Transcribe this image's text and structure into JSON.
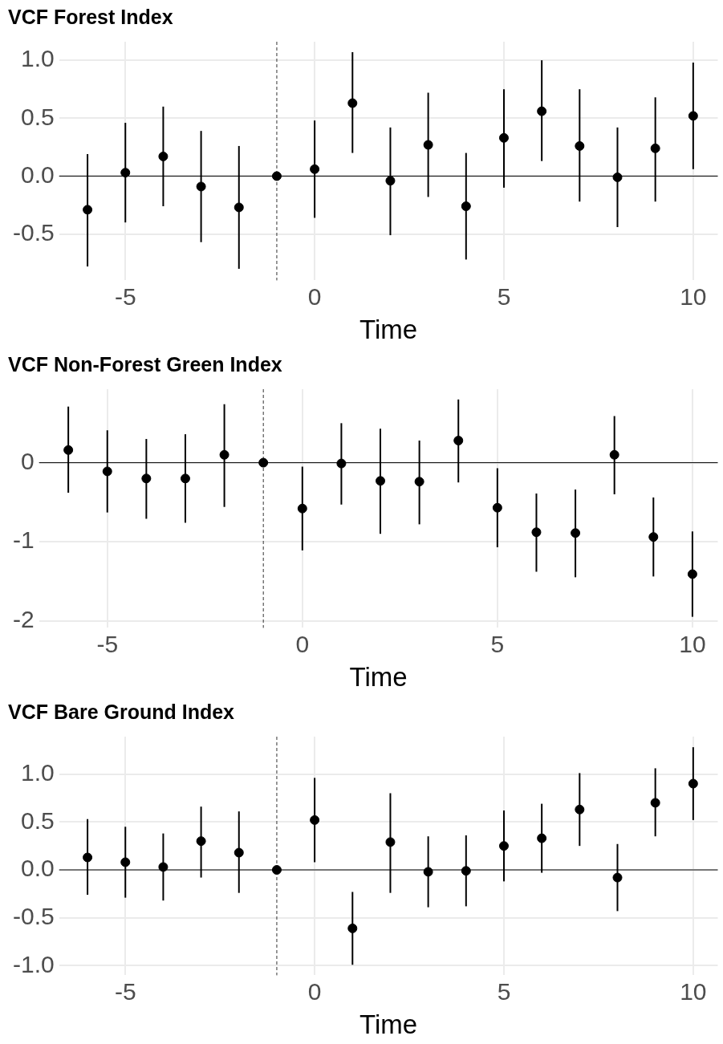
{
  "chart_data": [
    {
      "type": "scatter",
      "title": "VCF Forest Index",
      "xlabel": "Time",
      "x": [
        -6,
        -5,
        -4,
        -3,
        -2,
        -1,
        0,
        1,
        2,
        3,
        4,
        5,
        6,
        7,
        8,
        9,
        10
      ],
      "series": [
        {
          "color": "#000000",
          "values": [
            -0.29,
            0.03,
            0.17,
            -0.09,
            -0.27,
            0,
            0.06,
            0.63,
            -0.04,
            0.27,
            -0.26,
            0.33,
            0.56,
            0.26,
            -0.01,
            0.24,
            0.52
          ],
          "errors": [
            [
              -0.78,
              0.19
            ],
            [
              -0.4,
              0.46
            ],
            [
              -0.26,
              0.6
            ],
            [
              -0.57,
              0.39
            ],
            [
              -0.8,
              0.26
            ],
            null,
            [
              -0.36,
              0.48
            ],
            [
              0.2,
              1.07
            ],
            [
              -0.51,
              0.42
            ],
            [
              -0.18,
              0.72
            ],
            [
              -0.72,
              0.2
            ],
            [
              -0.1,
              0.75
            ],
            [
              0.13,
              1.0
            ],
            [
              -0.22,
              0.75
            ],
            [
              -0.44,
              0.42
            ],
            [
              -0.22,
              0.68
            ],
            [
              0.06,
              0.98
            ]
          ]
        }
      ],
      "xlim": [
        -6.75,
        10.65
      ],
      "xticks": [
        -5,
        0,
        5,
        10
      ],
      "ylim": [
        -0.9,
        1.16
      ],
      "yticks": [
        -0.5,
        {
          "value": 0,
          "label": "0.0"
        },
        0.5,
        {
          "value": 1,
          "label": "1.0"
        }
      ],
      "ref_lines": [
        {
          "axis": "y",
          "value": 0,
          "color": "#000000",
          "line_style": "solid"
        },
        {
          "axis": "x",
          "value": -1,
          "color": "#333333",
          "line_style": "dashed"
        }
      ],
      "grid": true,
      "marker": "circle"
    },
    {
      "type": "scatter",
      "title": "VCF Non-Forest Green Index",
      "xlabel": "Time",
      "x": [
        -6,
        -5,
        -4,
        -3,
        -2,
        -1,
        0,
        1,
        2,
        3,
        4,
        5,
        6,
        7,
        8,
        9,
        10
      ],
      "series": [
        {
          "color": "#000000",
          "values": [
            0.16,
            -0.11,
            -0.2,
            -0.2,
            0.1,
            0,
            -0.58,
            -0.01,
            -0.23,
            -0.24,
            0.28,
            -0.57,
            -0.88,
            -0.89,
            0.1,
            -0.94,
            -1.41
          ],
          "errors": [
            [
              -0.38,
              0.71
            ],
            [
              -0.63,
              0.41
            ],
            [
              -0.71,
              0.3
            ],
            [
              -0.76,
              0.36
            ],
            [
              -0.56,
              0.74
            ],
            null,
            [
              -1.11,
              -0.05
            ],
            [
              -0.53,
              0.5
            ],
            [
              -0.9,
              0.43
            ],
            [
              -0.78,
              0.28
            ],
            [
              -0.25,
              0.8
            ],
            [
              -1.07,
              -0.07
            ],
            [
              -1.38,
              -0.39
            ],
            [
              -1.45,
              -0.34
            ],
            [
              -0.4,
              0.59
            ],
            [
              -1.44,
              -0.44
            ],
            [
              -1.95,
              -0.87
            ]
          ]
        }
      ],
      "xlim": [
        -6.75,
        10.65
      ],
      "xticks": [
        -5,
        0,
        5,
        10
      ],
      "ylim": [
        -2.09,
        0.93
      ],
      "yticks": [
        -2,
        -1,
        0
      ],
      "ref_lines": [
        {
          "axis": "y",
          "value": 0,
          "color": "#000000",
          "line_style": "solid"
        },
        {
          "axis": "x",
          "value": -1,
          "color": "#333333",
          "line_style": "dashed"
        }
      ],
      "grid": true,
      "marker": "circle"
    },
    {
      "type": "scatter",
      "title": "VCF Bare Ground Index",
      "xlabel": "Time",
      "x": [
        -6,
        -5,
        -4,
        -3,
        -2,
        -1,
        0,
        1,
        2,
        3,
        4,
        5,
        6,
        7,
        8,
        9,
        10
      ],
      "series": [
        {
          "color": "#000000",
          "values": [
            0.13,
            0.08,
            0.03,
            0.3,
            0.18,
            0,
            0.52,
            -0.61,
            0.29,
            -0.02,
            -0.01,
            0.25,
            0.33,
            0.63,
            -0.08,
            0.7,
            0.9
          ],
          "errors": [
            [
              -0.26,
              0.53
            ],
            [
              -0.29,
              0.45
            ],
            [
              -0.32,
              0.38
            ],
            [
              -0.08,
              0.66
            ],
            [
              -0.24,
              0.61
            ],
            null,
            [
              0.08,
              0.96
            ],
            [
              -0.99,
              -0.23
            ],
            [
              -0.24,
              0.8
            ],
            [
              -0.39,
              0.35
            ],
            [
              -0.38,
              0.36
            ],
            [
              -0.12,
              0.62
            ],
            [
              -0.03,
              0.69
            ],
            [
              0.25,
              1.01
            ],
            [
              -0.43,
              0.27
            ],
            [
              0.35,
              1.06
            ],
            [
              0.52,
              1.28
            ]
          ]
        }
      ],
      "xlim": [
        -6.75,
        10.65
      ],
      "xticks": [
        -5,
        0,
        5,
        10
      ],
      "ylim": [
        -1.1,
        1.39
      ],
      "yticks": [
        {
          "value": -1,
          "label": "-1.0"
        },
        -0.5,
        {
          "value": 0,
          "label": "0.0"
        },
        0.5,
        {
          "value": 1,
          "label": "1.0"
        }
      ],
      "ref_lines": [
        {
          "axis": "y",
          "value": 0,
          "color": "#000000",
          "line_style": "solid"
        },
        {
          "axis": "x",
          "value": -1,
          "color": "#333333",
          "line_style": "dashed"
        }
      ],
      "grid": true,
      "marker": "circle"
    }
  ]
}
